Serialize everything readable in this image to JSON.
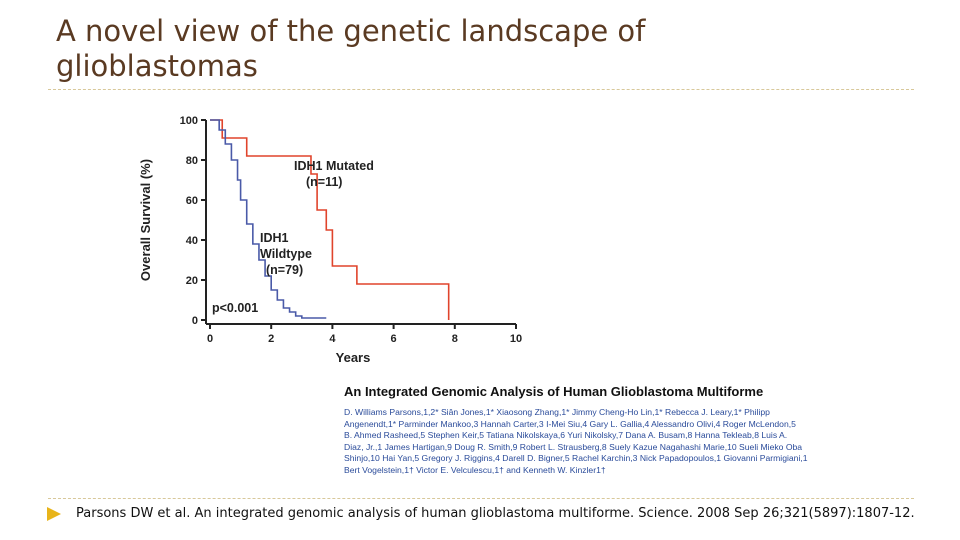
{
  "title": "A novel view of the genetic landscape of glioblastomas",
  "chart_data": {
    "type": "step",
    "ylabel": "Overall Survival (%)",
    "xlabel": "Years",
    "xlim": [
      0,
      10
    ],
    "ylim": [
      0,
      100
    ],
    "xticks": [
      0,
      2,
      4,
      6,
      8,
      10
    ],
    "yticks": [
      0,
      20,
      40,
      60,
      80,
      100
    ],
    "series": [
      {
        "color": "#e0442c",
        "x": [
          0,
          0.4,
          1.2,
          3.3,
          3.5,
          3.8,
          4.0,
          4.8,
          7.8
        ],
        "values": [
          100,
          91,
          82,
          73,
          55,
          45,
          27,
          18,
          0
        ]
      },
      {
        "color": "#4a5aa8",
        "x": [
          0,
          0.3,
          0.5,
          0.7,
          0.9,
          1.0,
          1.2,
          1.4,
          1.6,
          1.8,
          2.0,
          2.2,
          2.4,
          2.6,
          2.8,
          3.0,
          3.8
        ],
        "values": [
          100,
          95,
          88,
          80,
          70,
          60,
          48,
          38,
          30,
          22,
          15,
          10,
          6,
          4,
          2,
          1,
          1
        ]
      }
    ],
    "annotations": [
      "IDH1 Mutated",
      "(n=11)",
      "IDH1",
      "Wildtype",
      "(n=79)",
      "p<0.001"
    ]
  },
  "paper": {
    "title": "An Integrated Genomic Analysis of Human Glioblastoma Multiforme",
    "authors": [
      "D. Williams Parsons,1,2* Siân Jones,1* Xiaosong Zhang,1* Jimmy Cheng-Ho Lin,1* Rebecca J. Leary,1* Philipp",
      "Angenendt,1* Parminder Mankoo,3 Hannah Carter,3 I-Mei Siu,4 Gary L. Gallia,4 Alessandro Olivi,4 Roger McLendon,5",
      "B. Ahmed Rasheed,5 Stephen Keir,5 Tatiana Nikolskaya,6 Yuri Nikolsky,7 Dana A. Busam,8 Hanna Tekleab,8 Luis A.",
      "Diaz, Jr.,1 James Hartigan,9 Doug R. Smith,9 Robert L. Strausberg,8 Suely Kazue Nagahashi Marie,10 Sueli Mieko Oba",
      "Shinjo,10 Hai Yan,5 Gregory J. Riggins,4 Darell D. Bigner,5 Rachel Karchin,3 Nick Papadopoulos,1 Giovanni Parmigiani,1",
      "Bert Vogelstein,1† Victor E. Velculescu,1† and Kenneth W. Kinzler1†"
    ]
  },
  "citation": "Parsons DW et al. An integrated genomic analysis of human glioblastoma multiforme. Science. 2008 Sep 26;321(5897):1807-12."
}
